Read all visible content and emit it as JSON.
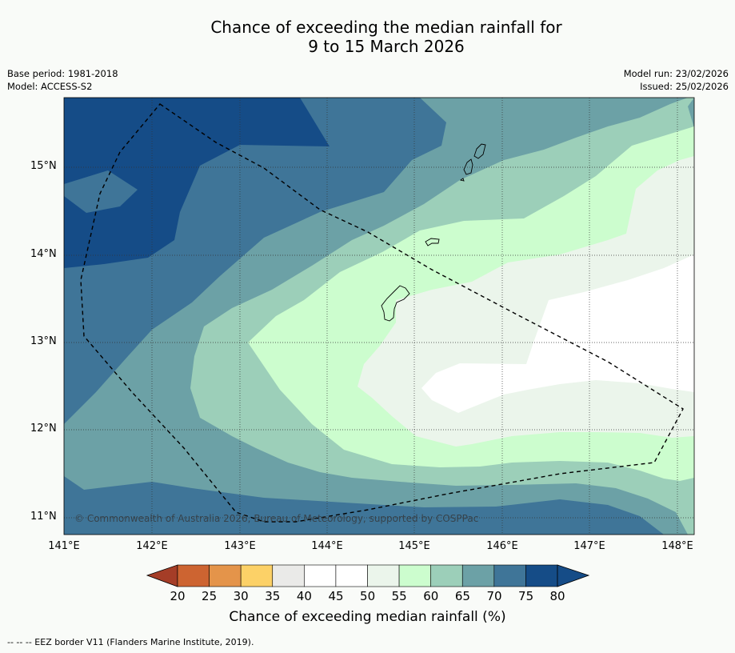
{
  "title": {
    "line1": "Chance of exceeding the median rainfall for",
    "line2": "9 to 15 March 2026"
  },
  "meta": {
    "base_period": "Base period: 1981-2018",
    "model": "Model: ACCESS-S2",
    "model_run": "Model run: 23/02/2026",
    "issued": "Issued: 25/02/2026"
  },
  "map": {
    "latitude_labels": [
      "15°N",
      "14°N",
      "13°N",
      "12°N",
      "11°N"
    ],
    "longitude_labels": [
      "141°E",
      "142°E",
      "143°E",
      "144°E",
      "145°E",
      "146°E",
      "147°E",
      "148°E"
    ],
    "copyright": "© Commonwealth of Australia 2026, Bureau of Meteorology, supported by COSPPac",
    "features": [
      "contour-regions",
      "eez-border",
      "islands",
      "gridlines"
    ]
  },
  "colorbar": {
    "ticks": [
      "20",
      "25",
      "30",
      "35",
      "40",
      "45",
      "50",
      "55",
      "60",
      "65",
      "70",
      "75",
      "80"
    ],
    "colors": [
      "#b2492a",
      "#cd6431",
      "#e4944a",
      "#fcd167",
      "#eaeae8",
      "#ffffff",
      "#ffffff",
      "#ebf5eb",
      "#ccfdce",
      "#9ccfb9",
      "#6ca1a6",
      "#3f7598",
      "#154c87"
    ],
    "low_color": "#a53d27",
    "high_color": "#154c87",
    "label": "Chance of exceeding median rainfall (%)"
  },
  "footnote": "--  --  -- EEZ border V11 (Flanders Marine Institute, 2019)."
}
